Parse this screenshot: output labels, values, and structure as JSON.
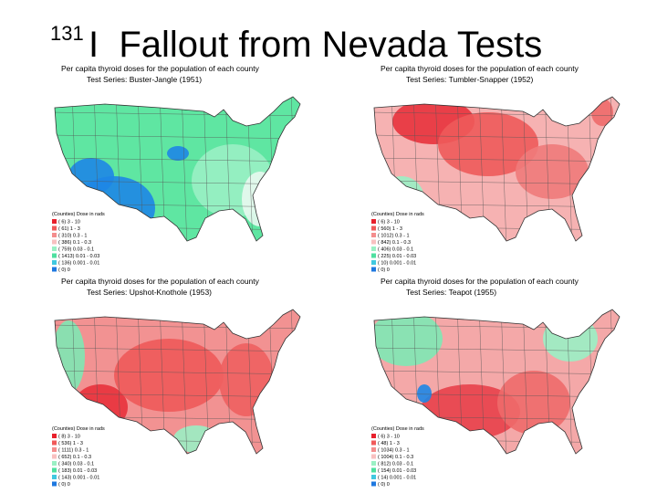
{
  "title": {
    "superscript": "131",
    "text": "I  Fallout from Nevada Tests"
  },
  "maps": [
    {
      "caption": "Per capita thyroid doses for the population of each county",
      "series": "Test Series:   Buster-Jangle (1951)",
      "legend_title": "(Counties) Dose in rads",
      "legend": [
        "( 6)  3 - 10",
        "( 61)  1 - 3",
        "( 310)  0.3 - 1",
        "( 386)  0.1 - 0.3",
        "( 759)  0.03 - 0.1",
        "( 1413)  0.01 - 0.03",
        "( 136)  0.001 - 0.01",
        "( 0)  0"
      ]
    },
    {
      "caption": "Per capita thyroid doses for the population of each county",
      "series": "Test Series:   Tumbler-Snapper (1952)",
      "legend_title": "(Counties) Dose in rads",
      "legend": [
        "( 6)  3 - 10",
        "( 560)  1 - 3",
        "( 1012)  0.3 - 1",
        "( 842)  0.1 - 0.3",
        "( 406)  0.03 - 0.1",
        "( 225)  0.01 - 0.03",
        "( 10)  0.001 - 0.01",
        "( 0)  0"
      ]
    },
    {
      "caption": "Per capita thyroid doses for the population of each county",
      "series": "Test Series:   Upshot-Knothole (1953)",
      "legend_title": "(Counties) Dose in rads",
      "legend": [
        "( 8)  3 - 10",
        "( 536)  1 - 3",
        "( 1111)  0.3 - 1",
        "( 652)  0.1 - 0.3",
        "( 340)  0.03 - 0.1",
        "( 183)  0.01 - 0.03",
        "( 143)  0.001 - 0.01",
        "( 0)  0"
      ]
    },
    {
      "caption": "Per capita thyroid doses for the population of each county",
      "series": "Test Series:   Teapot (1955)",
      "legend_title": "(Counties) Dose in rads",
      "legend": [
        "( 6)  3 - 10",
        "( 48)  1 - 3",
        "( 1034)  0.3 - 1",
        "( 1004)  0.1 - 0.3",
        "( 812)  0.03 - 0.1",
        "( 154)  0.01 - 0.03",
        "( 14)  0.001 - 0.01",
        "( 0)  0"
      ]
    }
  ]
}
